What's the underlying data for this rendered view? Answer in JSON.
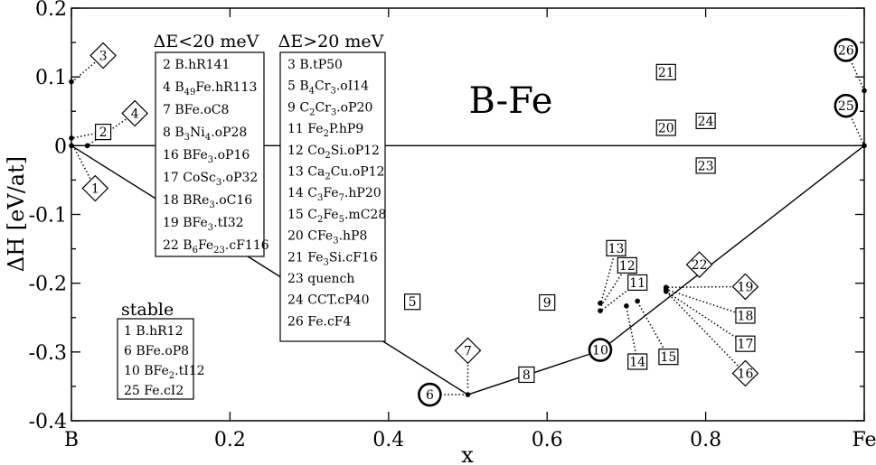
{
  "chart_data": {
    "type": "scatter",
    "title": "B-Fe",
    "xlabel": "x",
    "ylabel": "ΔH [eV/at]",
    "xlim": [
      0,
      1
    ],
    "ylim": [
      -0.4,
      0.2
    ],
    "grid": false,
    "x_ticks": [
      {
        "value": 0,
        "label": "B"
      },
      {
        "value": 0.2,
        "label": "0.2"
      },
      {
        "value": 0.4,
        "label": "0.4"
      },
      {
        "value": 0.6,
        "label": "0.6"
      },
      {
        "value": 0.8,
        "label": "0.8"
      },
      {
        "value": 1,
        "label": "Fe"
      }
    ],
    "y_ticks": [
      {
        "value": 0.2,
        "label": "0.2"
      },
      {
        "value": 0.1,
        "label": "0.1"
      },
      {
        "value": 0,
        "label": "0"
      },
      {
        "value": -0.1,
        "label": "-0.1"
      },
      {
        "value": -0.2,
        "label": "-0.2"
      },
      {
        "value": -0.3,
        "label": "-0.3"
      },
      {
        "value": -0.4,
        "label": "-0.4"
      }
    ],
    "convex_hull": [
      [
        0,
        0
      ],
      [
        0.5,
        -0.362
      ],
      [
        0.667,
        -0.298
      ],
      [
        1,
        0
      ]
    ],
    "zero_line": [
      [
        0,
        0
      ],
      [
        1,
        0
      ]
    ],
    "points": [
      {
        "x": 0,
        "y": 0
      },
      {
        "x": 0,
        "y": 0.011
      },
      {
        "x": 0,
        "y": 0.093
      },
      {
        "x": 0.02,
        "y": 0
      },
      {
        "x": 0.5,
        "y": -0.362
      },
      {
        "x": 0.667,
        "y": -0.229
      },
      {
        "x": 0.667,
        "y": -0.24
      },
      {
        "x": 0.7,
        "y": -0.233
      },
      {
        "x": 0.714,
        "y": -0.226
      },
      {
        "x": 0.75,
        "y": -0.206
      },
      {
        "x": 0.75,
        "y": -0.209
      },
      {
        "x": 0.75,
        "y": -0.212
      },
      {
        "x": 1,
        "y": 0
      },
      {
        "x": 1,
        "y": 0.08
      }
    ],
    "markers": [
      {
        "label": "1",
        "shape": "diamond",
        "x": 0.03,
        "y": -0.062,
        "lx": 0.003,
        "ly": -0.002
      },
      {
        "label": "2",
        "shape": "square",
        "x": 0.04,
        "y": 0.02,
        "lx": 0.001,
        "ly": 0.011
      },
      {
        "label": "3",
        "shape": "diamond",
        "x": 0.04,
        "y": 0.131,
        "lx": 0.001,
        "ly": 0.093
      },
      {
        "label": "4",
        "shape": "diamond",
        "x": 0.08,
        "y": 0.047,
        "lx": 0.02,
        "ly": 0
      },
      {
        "label": "5",
        "shape": "square",
        "x": 0.43,
        "y": -0.227
      },
      {
        "label": "6",
        "shape": "circle",
        "x": 0.452,
        "y": -0.362,
        "lx": 0.497,
        "ly": -0.362
      },
      {
        "label": "7",
        "shape": "diamond",
        "x": 0.5,
        "y": -0.298,
        "lx": 0.5,
        "ly": -0.355
      },
      {
        "label": "8",
        "shape": "square",
        "x": 0.574,
        "y": -0.333
      },
      {
        "label": "9",
        "shape": "square",
        "x": 0.6,
        "y": -0.228
      },
      {
        "label": "10",
        "shape": "circle",
        "x": 0.667,
        "y": -0.297
      },
      {
        "label": "11",
        "shape": "square",
        "x": 0.714,
        "y": -0.199,
        "lx": 0.668,
        "ly": -0.24
      },
      {
        "label": "12",
        "shape": "square",
        "x": 0.701,
        "y": -0.174,
        "lx": 0.668,
        "ly": -0.233
      },
      {
        "label": "13",
        "shape": "square",
        "x": 0.687,
        "y": -0.149,
        "lx": 0.668,
        "ly": -0.228
      },
      {
        "label": "14",
        "shape": "square",
        "x": 0.714,
        "y": -0.314,
        "lx": 0.7,
        "ly": -0.235
      },
      {
        "label": "15",
        "shape": "square",
        "x": 0.753,
        "y": -0.307,
        "lx": 0.714,
        "ly": -0.227
      },
      {
        "label": "16",
        "shape": "diamond",
        "x": 0.85,
        "y": -0.331,
        "lx": 0.75,
        "ly": -0.212
      },
      {
        "label": "17",
        "shape": "square",
        "x": 0.85,
        "y": -0.288,
        "lx": 0.75,
        "ly": -0.212
      },
      {
        "label": "18",
        "shape": "square",
        "x": 0.85,
        "y": -0.247,
        "lx": 0.75,
        "ly": -0.209
      },
      {
        "label": "19",
        "shape": "diamond",
        "x": 0.85,
        "y": -0.205,
        "lx": 0.75,
        "ly": -0.206
      },
      {
        "label": "20",
        "shape": "square",
        "x": 0.75,
        "y": 0.026
      },
      {
        "label": "21",
        "shape": "square",
        "x": 0.75,
        "y": 0.107
      },
      {
        "label": "22",
        "shape": "diamond",
        "x": 0.792,
        "y": -0.173
      },
      {
        "label": "23",
        "shape": "square",
        "x": 0.8,
        "y": -0.029
      },
      {
        "label": "24",
        "shape": "square",
        "x": 0.8,
        "y": 0.036
      },
      {
        "label": "25",
        "shape": "circle",
        "x": 0.977,
        "y": 0.058,
        "lx": 1,
        "ly": 0
      },
      {
        "label": "26",
        "shape": "circle",
        "x": 0.977,
        "y": 0.139,
        "lx": 1,
        "ly": 0.08
      }
    ],
    "legend_low": {
      "title": "ΔE<20 meV",
      "placement": "upper-left",
      "entries": [
        {
          "num": "2",
          "parts": [
            [
              "B.hR141",
              ""
            ]
          ]
        },
        {
          "num": "4",
          "parts": [
            [
              "B",
              ""
            ],
            [
              "49",
              "sub"
            ],
            [
              "Fe.hR113",
              ""
            ]
          ]
        },
        {
          "num": "7",
          "parts": [
            [
              "BFe.oC8",
              ""
            ]
          ]
        },
        {
          "num": "8",
          "parts": [
            [
              "B",
              ""
            ],
            [
              "3",
              "sub"
            ],
            [
              "Ni",
              ""
            ],
            [
              "4",
              "sub"
            ],
            [
              ".oP28",
              ""
            ]
          ]
        },
        {
          "num": "16",
          "parts": [
            [
              "BFe",
              ""
            ],
            [
              "3",
              "sub"
            ],
            [
              ".oP16",
              ""
            ]
          ]
        },
        {
          "num": "17",
          "parts": [
            [
              "CoSc",
              ""
            ],
            [
              "3",
              "sub"
            ],
            [
              ".oP32",
              ""
            ]
          ]
        },
        {
          "num": "18",
          "parts": [
            [
              "BRe",
              ""
            ],
            [
              "3",
              "sub"
            ],
            [
              ".oC16",
              ""
            ]
          ]
        },
        {
          "num": "19",
          "parts": [
            [
              "BFe",
              ""
            ],
            [
              "3",
              "sub"
            ],
            [
              ".tI32",
              ""
            ]
          ]
        },
        {
          "num": "22",
          "parts": [
            [
              "B",
              ""
            ],
            [
              "6",
              "sub"
            ],
            [
              "Fe",
              ""
            ],
            [
              "23",
              "sub"
            ],
            [
              ".cF116",
              ""
            ]
          ]
        }
      ]
    },
    "legend_high": {
      "title": "ΔE>20 meV",
      "placement": "upper-center",
      "entries": [
        {
          "num": "3",
          "parts": [
            [
              "B.tP50",
              ""
            ]
          ]
        },
        {
          "num": "5",
          "parts": [
            [
              "B",
              ""
            ],
            [
              "4",
              "sub"
            ],
            [
              "Cr",
              ""
            ],
            [
              "3",
              "sub"
            ],
            [
              ".oI14",
              ""
            ]
          ]
        },
        {
          "num": "9",
          "parts": [
            [
              "C",
              ""
            ],
            [
              "2",
              "sub"
            ],
            [
              "Cr",
              ""
            ],
            [
              "3",
              "sub"
            ],
            [
              ".oP20",
              ""
            ]
          ]
        },
        {
          "num": "11",
          "parts": [
            [
              "Fe",
              ""
            ],
            [
              "2",
              "sub"
            ],
            [
              "P.hP9",
              ""
            ]
          ]
        },
        {
          "num": "12",
          "parts": [
            [
              "Co",
              ""
            ],
            [
              "2",
              "sub"
            ],
            [
              "Si.oP12",
              ""
            ]
          ]
        },
        {
          "num": "13",
          "parts": [
            [
              "Ca",
              ""
            ],
            [
              "2",
              "sub"
            ],
            [
              "Cu.oP12",
              ""
            ]
          ]
        },
        {
          "num": "14",
          "parts": [
            [
              "C",
              ""
            ],
            [
              "3",
              "sub"
            ],
            [
              "Fe",
              ""
            ],
            [
              "7",
              "sub"
            ],
            [
              ".hP20",
              ""
            ]
          ]
        },
        {
          "num": "15",
          "parts": [
            [
              "C",
              ""
            ],
            [
              "2",
              "sub"
            ],
            [
              "Fe",
              ""
            ],
            [
              "5",
              "sub"
            ],
            [
              ".mC28",
              ""
            ]
          ]
        },
        {
          "num": "20",
          "parts": [
            [
              "CFe",
              ""
            ],
            [
              "3",
              "sub"
            ],
            [
              ".hP8",
              ""
            ]
          ]
        },
        {
          "num": "21",
          "parts": [
            [
              "Fe",
              ""
            ],
            [
              "3",
              "sub"
            ],
            [
              "Si.cF16",
              ""
            ]
          ]
        },
        {
          "num": "23",
          "parts": [
            [
              "quench",
              ""
            ]
          ]
        },
        {
          "num": "24",
          "parts": [
            [
              "CCT.cP40",
              ""
            ]
          ]
        },
        {
          "num": "26",
          "parts": [
            [
              "Fe.cF4",
              ""
            ]
          ]
        }
      ]
    },
    "legend_stable": {
      "title": "stable",
      "placement": "lower-left",
      "entries": [
        {
          "num": "1",
          "parts": [
            [
              "B.hR12",
              ""
            ]
          ]
        },
        {
          "num": "6",
          "parts": [
            [
              "BFe.oP8",
              ""
            ]
          ]
        },
        {
          "num": "10",
          "parts": [
            [
              "BFe",
              ""
            ],
            [
              "2",
              "sub"
            ],
            [
              ".tI12",
              ""
            ]
          ]
        },
        {
          "num": "25",
          "parts": [
            [
              "Fe.cI2",
              ""
            ]
          ]
        }
      ]
    }
  }
}
